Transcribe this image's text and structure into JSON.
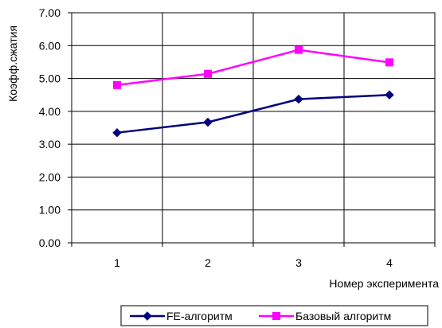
{
  "chart_data": {
    "type": "line",
    "categories": [
      "1",
      "2",
      "3",
      "4"
    ],
    "series": [
      {
        "name": "FE-алгоритм",
        "values": [
          3.35,
          3.67,
          4.37,
          4.5
        ],
        "color": "#000080",
        "marker": "diamond"
      },
      {
        "name": "Базовый алгоритм",
        "values": [
          4.8,
          5.14,
          5.87,
          5.49
        ],
        "color": "#FF00FF",
        "marker": "square"
      }
    ],
    "title": "",
    "xlabel": "Номер эксперимента",
    "ylabel": "Коэфф.сжатия",
    "ylim": [
      0,
      7
    ],
    "ystep": 1,
    "ytick_labels": [
      "0.00",
      "1.00",
      "2.00",
      "3.00",
      "4.00",
      "5.00",
      "6.00",
      "7.00"
    ],
    "grid": true,
    "legend": "bottom-right"
  }
}
